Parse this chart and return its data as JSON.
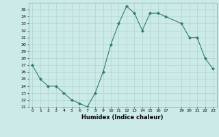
{
  "x": [
    0,
    1,
    2,
    3,
    4,
    5,
    6,
    7,
    8,
    9,
    10,
    11,
    12,
    13,
    14,
    15,
    16,
    17,
    19,
    20,
    21,
    22,
    23
  ],
  "y": [
    27,
    25,
    24,
    24,
    23,
    22,
    21.5,
    21,
    23,
    26,
    30,
    33,
    35.5,
    34.5,
    32,
    34.5,
    34.5,
    34,
    33,
    31,
    31,
    28,
    26.5
  ],
  "line_color": "#2e7d6e",
  "marker_color": "#2e7d6e",
  "bg_color": "#cceae7",
  "grid_color": "#add5d2",
  "xlabel": "Humidex (Indice chaleur)",
  "xlim": [
    -0.5,
    23.5
  ],
  "ylim": [
    21,
    36
  ],
  "yticks": [
    21,
    22,
    23,
    24,
    25,
    26,
    27,
    28,
    29,
    30,
    31,
    32,
    33,
    34,
    35
  ],
  "xticks": [
    0,
    1,
    2,
    3,
    4,
    5,
    6,
    7,
    8,
    9,
    10,
    11,
    12,
    13,
    14,
    15,
    16,
    17,
    19,
    20,
    21,
    22,
    23
  ],
  "xtick_labels": [
    "0",
    "1",
    "2",
    "3",
    "4",
    "5",
    "6",
    "7",
    "8",
    "9",
    "10",
    "11",
    "12",
    "13",
    "14",
    "15",
    "16",
    "17",
    "19",
    "20",
    "21",
    "22",
    "23"
  ]
}
